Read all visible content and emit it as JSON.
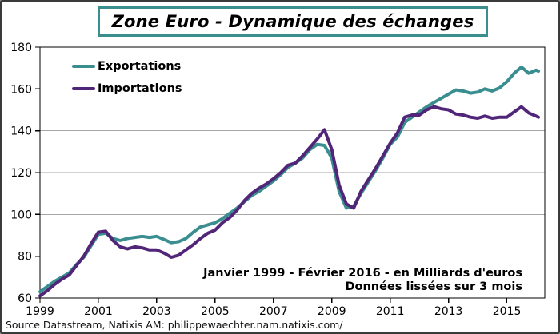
{
  "window": {
    "background": "#ffffff",
    "border_color": "#3a3a3a"
  },
  "title": {
    "text": "Zone Euro - Dynamique des échanges",
    "border_color": "#3a8e8e"
  },
  "annotation": {
    "line1": "Janvier 1999 - Février 2016 - en Milliards d'euros",
    "line2": "Données lissées sur 3 mois"
  },
  "source": "Source Datastream, Natixis AM: philippewaechter.nam.natixis.com/",
  "chart_data": {
    "type": "line",
    "title": "Zone Euro - Dynamique des échanges",
    "xlabel": "",
    "ylabel": "",
    "xlim": [
      1999,
      2016.3
    ],
    "ylim": [
      60,
      180
    ],
    "x_ticks": [
      1999,
      2001,
      2003,
      2005,
      2007,
      2009,
      2011,
      2013,
      2015
    ],
    "y_ticks": [
      60,
      80,
      100,
      120,
      140,
      160,
      180
    ],
    "grid": "horizontal",
    "gridline_color": "#a6a6a6",
    "axis_color": "#000000",
    "legend_position": "top-left",
    "x": [
      1999.0,
      1999.25,
      1999.5,
      1999.75,
      2000.0,
      2000.25,
      2000.5,
      2000.75,
      2001.0,
      2001.25,
      2001.5,
      2001.75,
      2002.0,
      2002.25,
      2002.5,
      2002.75,
      2003.0,
      2003.25,
      2003.5,
      2003.75,
      2004.0,
      2004.25,
      2004.5,
      2004.75,
      2005.0,
      2005.25,
      2005.5,
      2005.75,
      2006.0,
      2006.25,
      2006.5,
      2006.75,
      2007.0,
      2007.25,
      2007.5,
      2007.75,
      2008.0,
      2008.25,
      2008.5,
      2008.75,
      2009.0,
      2009.25,
      2009.5,
      2009.75,
      2010.0,
      2010.25,
      2010.5,
      2010.75,
      2011.0,
      2011.25,
      2011.5,
      2011.75,
      2012.0,
      2012.25,
      2012.5,
      2012.75,
      2013.0,
      2013.25,
      2013.5,
      2013.75,
      2014.0,
      2014.25,
      2014.5,
      2014.75,
      2015.0,
      2015.25,
      2015.5,
      2015.75,
      2016.0,
      2016.08
    ],
    "series": [
      {
        "name": "Exportations",
        "color": "#3a8e8f",
        "values": [
          63,
          65.5,
          68,
          70,
          72,
          76,
          79.5,
          85,
          90.5,
          91,
          88.5,
          87.5,
          88.5,
          89,
          89.5,
          89,
          89.5,
          88,
          86.5,
          87,
          88.5,
          91.5,
          94,
          95,
          96,
          98,
          100.5,
          103,
          106,
          109,
          111,
          113.5,
          116,
          119,
          122.5,
          124.5,
          127,
          131,
          133.5,
          133,
          127,
          111,
          103,
          104,
          110,
          115.5,
          121,
          127,
          133.5,
          137,
          144,
          146.5,
          149,
          151.5,
          153.5,
          155.5,
          157.5,
          159.5,
          159,
          158,
          158.5,
          160,
          159,
          160.5,
          163.5,
          167.5,
          170.5,
          167.5,
          169,
          168.5
        ]
      },
      {
        "name": "Importations",
        "color": "#512679",
        "values": [
          61,
          63.5,
          66.5,
          69,
          71,
          75.5,
          80,
          86,
          91.5,
          92,
          87.5,
          84.5,
          83.5,
          84.5,
          84,
          83,
          83,
          81.5,
          79.5,
          80.5,
          83,
          85.5,
          88.5,
          91,
          92.5,
          96,
          98.5,
          102,
          106.5,
          110,
          112.5,
          114.5,
          117,
          120,
          123.5,
          124.5,
          128,
          132,
          136,
          140.5,
          131,
          114,
          105,
          103,
          111,
          116.5,
          122,
          128,
          134,
          139,
          146.5,
          147.5,
          147.5,
          150,
          151.5,
          150.5,
          150,
          148,
          147.5,
          146.5,
          146,
          147,
          146,
          146.5,
          146.5,
          149,
          151.5,
          148.5,
          147,
          146.5
        ]
      }
    ]
  }
}
